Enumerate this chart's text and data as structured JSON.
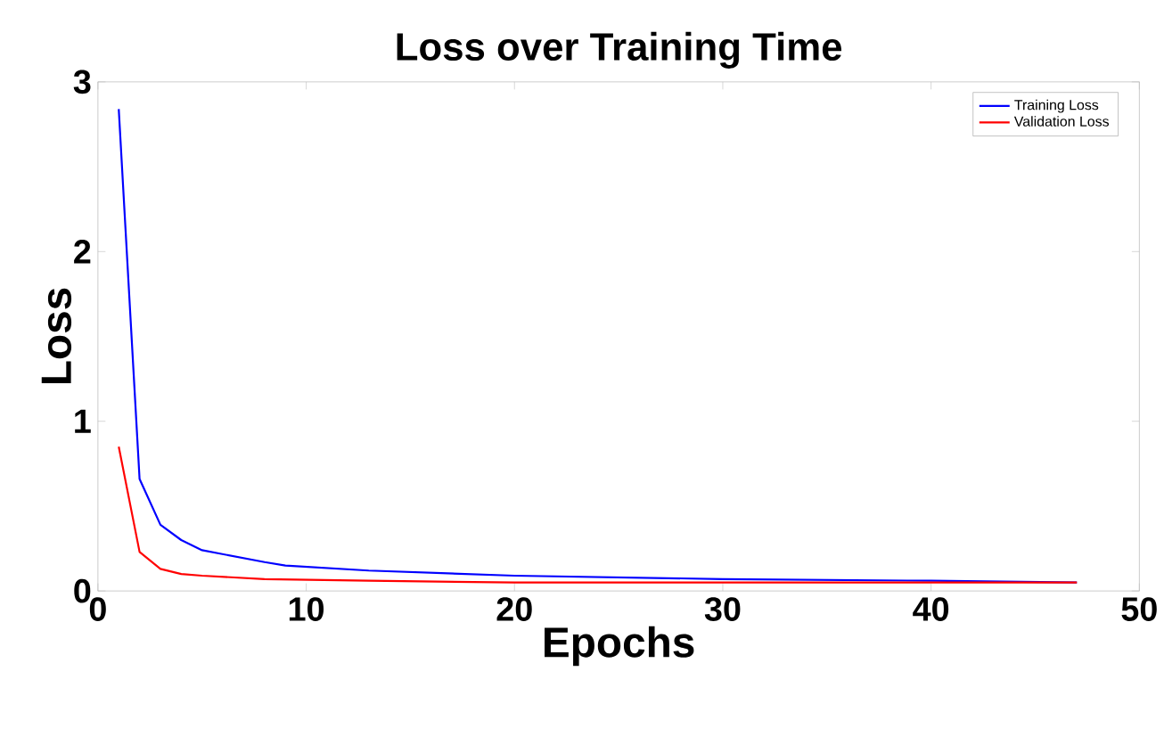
{
  "chart_data": {
    "type": "line",
    "title": "Loss over Training Time",
    "xlabel": "Epochs",
    "ylabel": "Loss",
    "xlim": [
      0,
      50
    ],
    "ylim": [
      0,
      3
    ],
    "xticks": [
      0,
      10,
      20,
      30,
      40,
      50
    ],
    "yticks": [
      0,
      1,
      2,
      3
    ],
    "grid": false,
    "legend": "top right",
    "line_style": "solid",
    "marker": "none",
    "series": [
      {
        "name": "Training Loss",
        "color": "#0000ff",
        "x": [
          1,
          2,
          3,
          4,
          5,
          8,
          9,
          13,
          20,
          30,
          40,
          47
        ],
        "values": [
          2.84,
          0.66,
          0.39,
          0.3,
          0.24,
          0.17,
          0.15,
          0.12,
          0.09,
          0.07,
          0.06,
          0.05
        ]
      },
      {
        "name": "Validation Loss",
        "color": "#ff0000",
        "x": [
          1,
          2,
          3,
          4,
          5,
          8,
          13,
          20,
          30,
          47
        ],
        "values": [
          0.85,
          0.23,
          0.13,
          0.1,
          0.09,
          0.07,
          0.06,
          0.05,
          0.05,
          0.05
        ]
      }
    ]
  }
}
